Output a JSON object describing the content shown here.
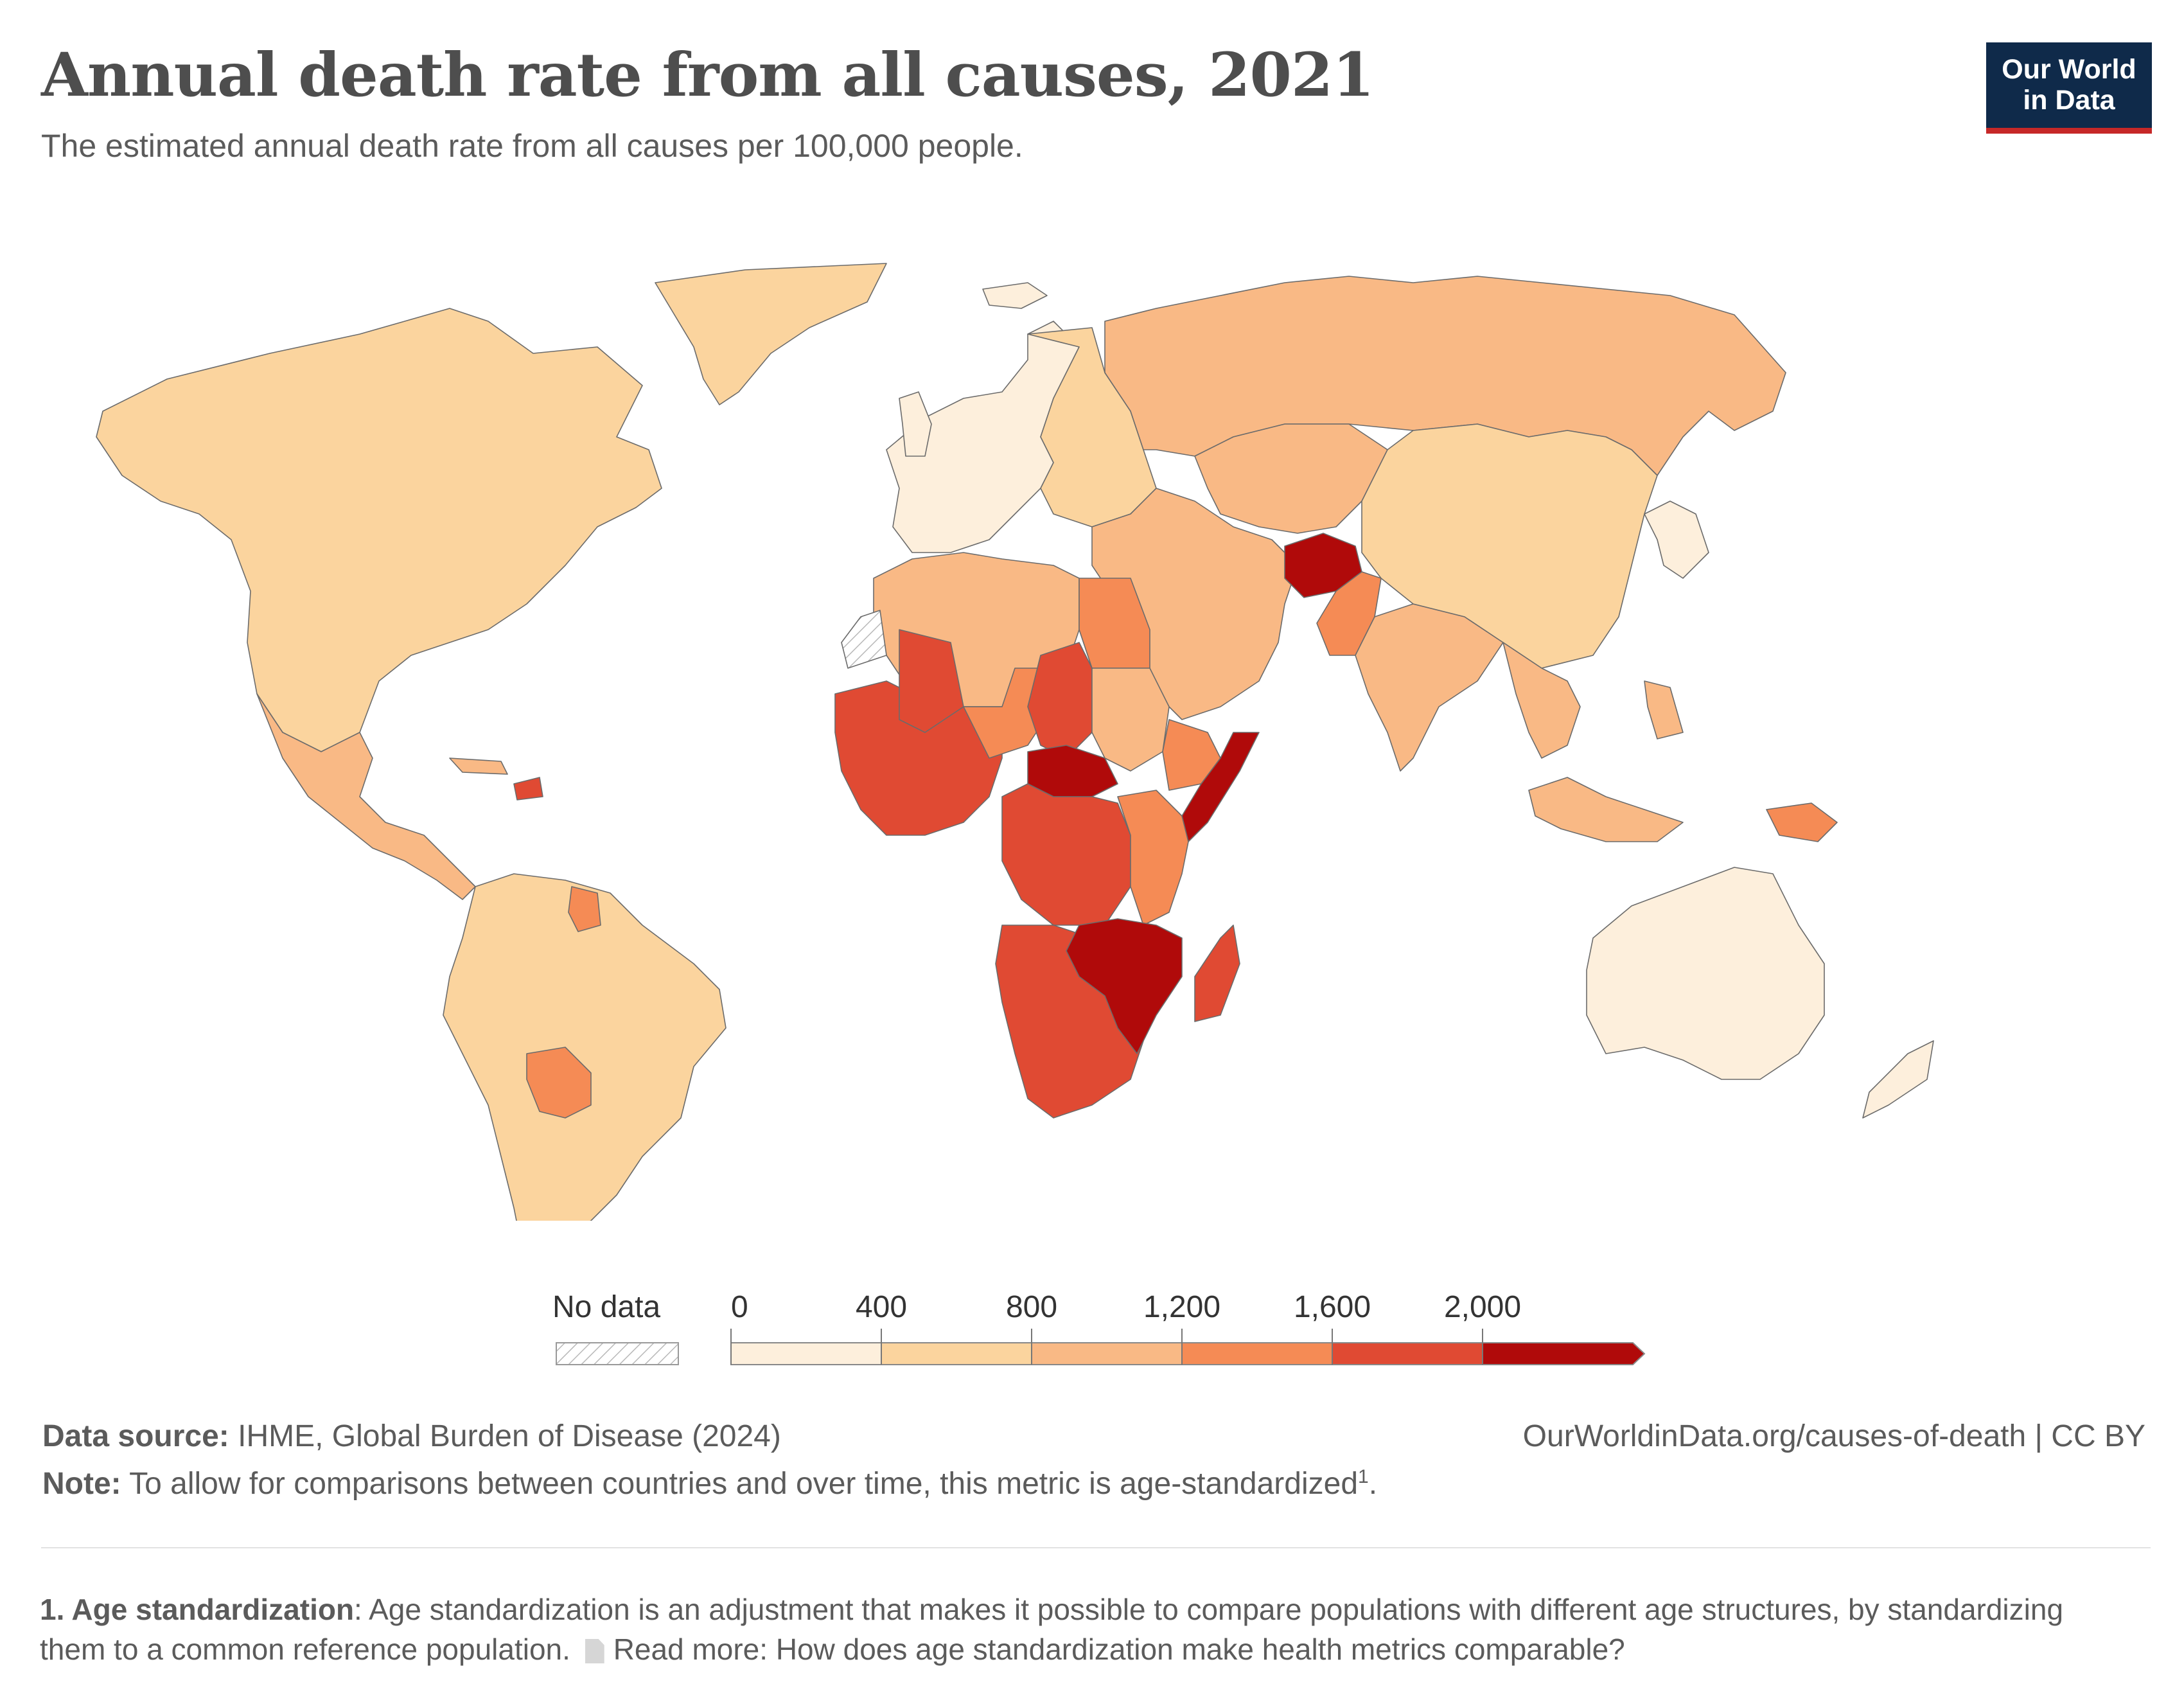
{
  "header": {
    "title": "Annual death rate from all causes, 2021",
    "subtitle": "The estimated annual death rate from all causes per 100,000 people."
  },
  "logo": {
    "line1": "Our World",
    "line2": "in Data"
  },
  "legend": {
    "no_data_label": "No data",
    "ticks": [
      "0",
      "400",
      "800",
      "1,200",
      "1,600",
      "2,000"
    ],
    "bin_colors": [
      "#fdefdc",
      "#fbd49e",
      "#f9b985",
      "#f58b55",
      "#e04a33",
      "#b00a0a"
    ]
  },
  "regions": [
    {
      "name": "North America",
      "bin": 1
    },
    {
      "name": "Mexico and Central America",
      "bin": 2
    },
    {
      "name": "Haiti",
      "bin": 4
    },
    {
      "name": "South America",
      "bin": 1
    },
    {
      "name": "Bolivia",
      "bin": 3
    },
    {
      "name": "Guyana",
      "bin": 3
    },
    {
      "name": "Greenland",
      "bin": 1
    },
    {
      "name": "Iceland",
      "bin": 0
    },
    {
      "name": "Western Europe",
      "bin": 0
    },
    {
      "name": "Eastern Europe",
      "bin": 1
    },
    {
      "name": "Russia",
      "bin": 2
    },
    {
      "name": "Central Asia",
      "bin": 2
    },
    {
      "name": "Middle East",
      "bin": 2
    },
    {
      "name": "North Africa",
      "bin": 2
    },
    {
      "name": "Egypt",
      "bin": 3
    },
    {
      "name": "West Africa",
      "bin": 4
    },
    {
      "name": "Mali",
      "bin": 4
    },
    {
      "name": "Central Sahel",
      "bin": 3
    },
    {
      "name": "Chad",
      "bin": 4
    },
    {
      "name": "Central African Republic",
      "bin": 5
    },
    {
      "name": "Sudan",
      "bin": 2
    },
    {
      "name": "Ethiopia",
      "bin": 3
    },
    {
      "name": "Somalia",
      "bin": 5
    },
    {
      "name": "Central Africa",
      "bin": 4
    },
    {
      "name": "East Africa",
      "bin": 3
    },
    {
      "name": "Southern Africa",
      "bin": 4
    },
    {
      "name": "Zambia Malawi Mozambique",
      "bin": 5
    },
    {
      "name": "Madagascar",
      "bin": 4
    },
    {
      "name": "Afghanistan",
      "bin": 5
    },
    {
      "name": "Pakistan",
      "bin": 3
    },
    {
      "name": "India",
      "bin": 2
    },
    {
      "name": "China and Mongolia",
      "bin": 1
    },
    {
      "name": "Japan and Korea",
      "bin": 0
    },
    {
      "name": "Southeast Asia",
      "bin": 2
    },
    {
      "name": "Indonesia",
      "bin": 2
    },
    {
      "name": "Papua New Guinea",
      "bin": 3
    },
    {
      "name": "Australia",
      "bin": 0
    },
    {
      "name": "New Zealand",
      "bin": 0
    },
    {
      "name": "Western Sahara",
      "bin": -1
    }
  ],
  "footer": {
    "data_source_label": "Data source:",
    "data_source_text": "IHME, Global Burden of Disease (2024)",
    "attribution": "OurWorldinData.org/causes-of-death | CC BY",
    "note_label": "Note:",
    "note_text": "To allow for comparisons between countries and over time, this metric is age-standardized",
    "note_sup": "1",
    "note_end": ".",
    "footnote_label": "1. Age standardization",
    "footnote_text": ": Age standardization is an adjustment that makes it possible to compare populations with different age structures, by standardizing them to a common reference population.",
    "read_more_icon": "document-icon",
    "read_more_text": "Read more: How does age standardization make health metrics comparable?"
  }
}
